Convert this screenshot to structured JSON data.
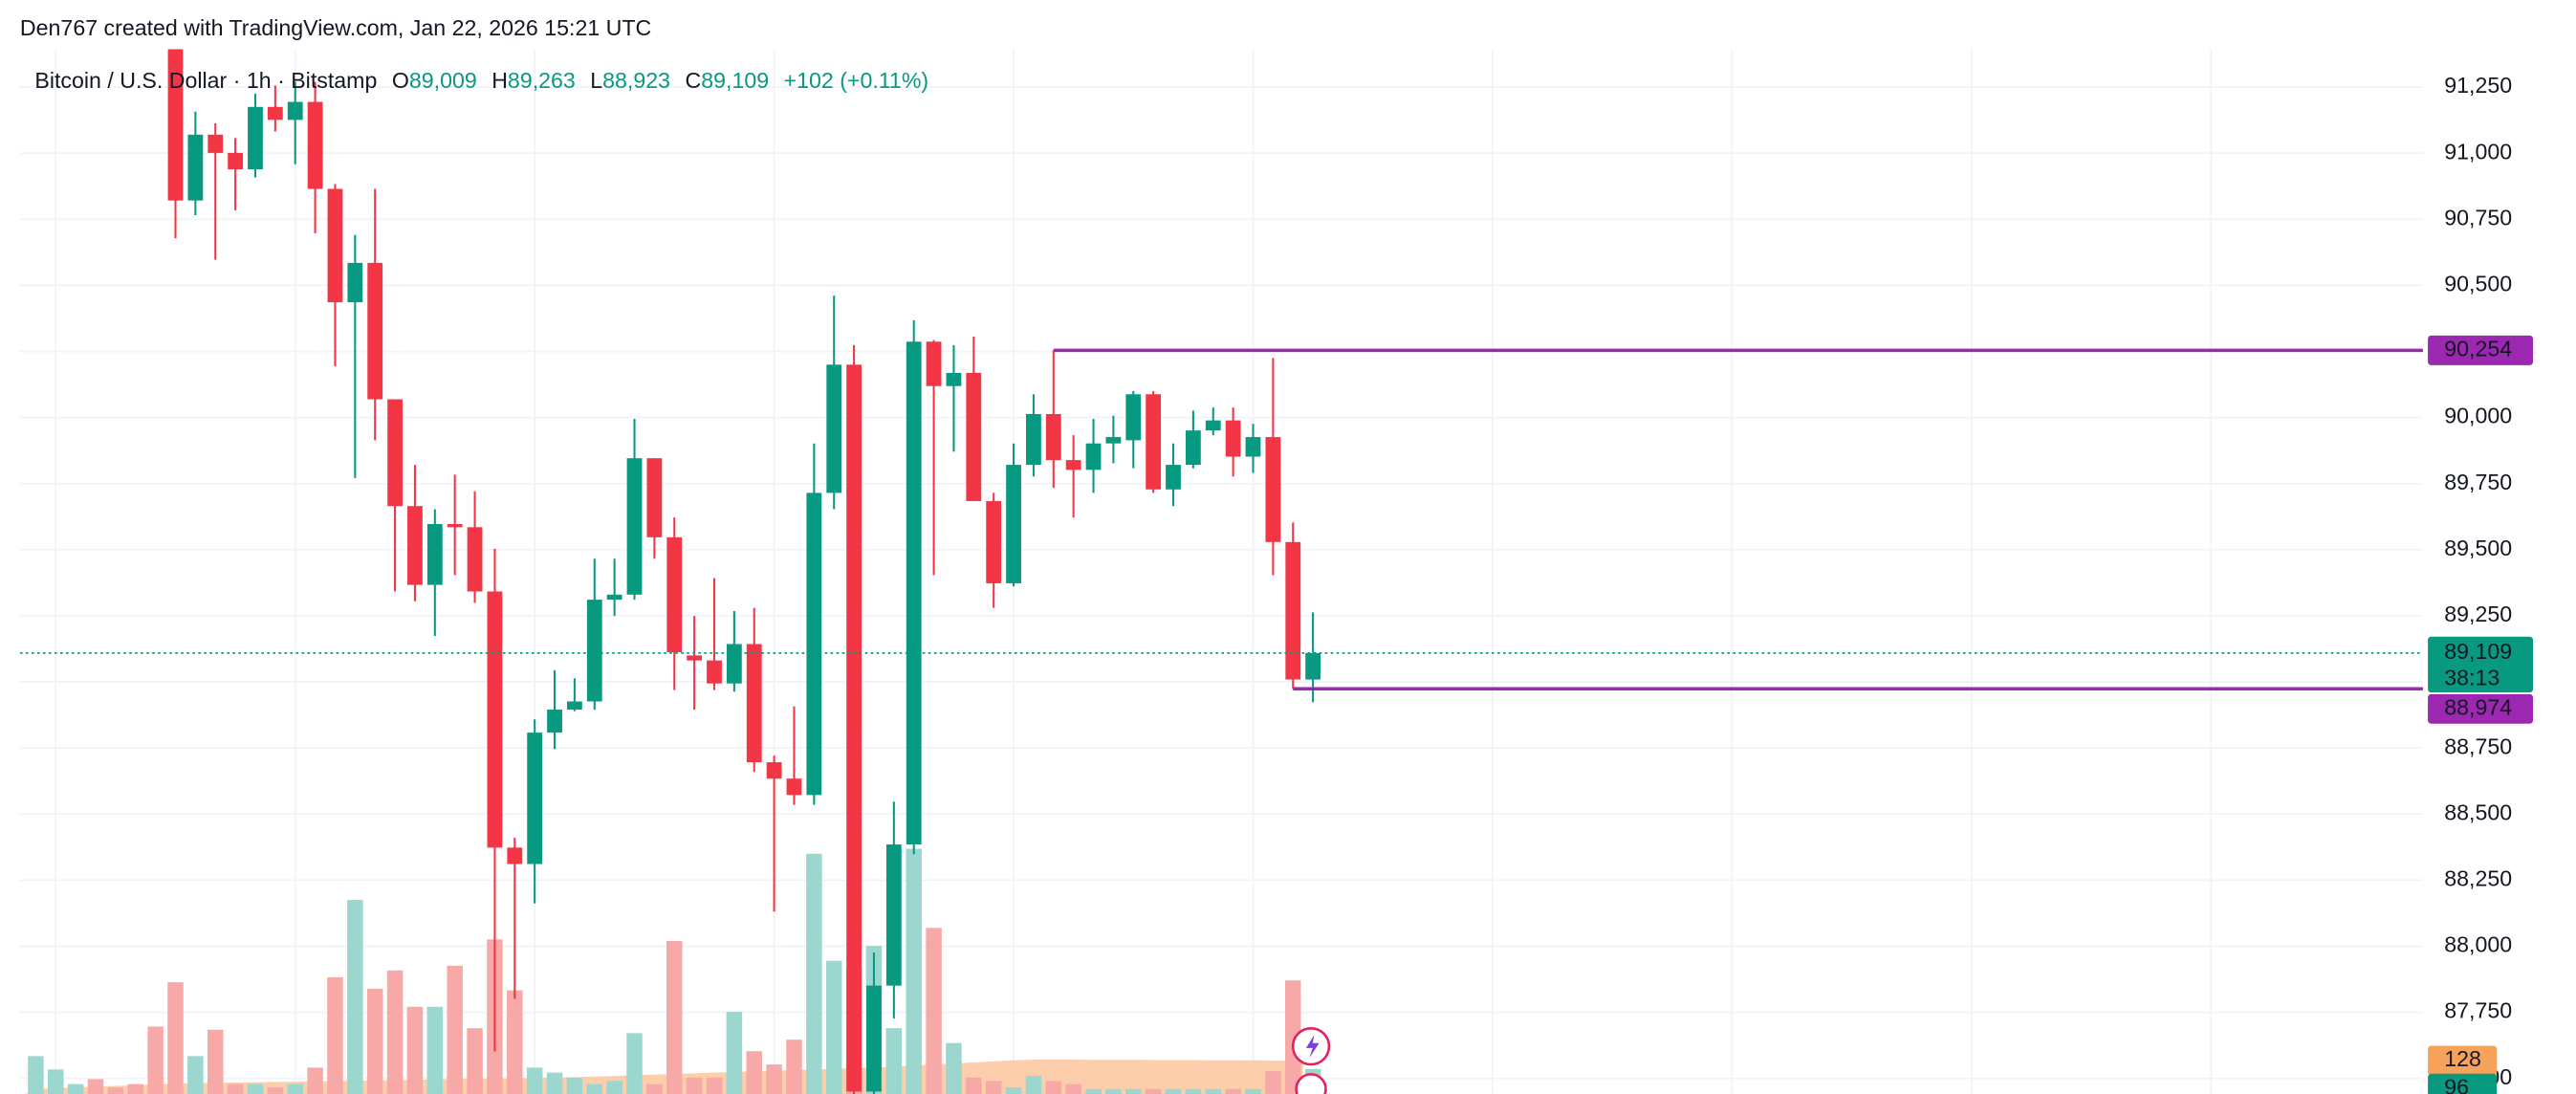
{
  "chart_data": {
    "type": "candlestick",
    "attribution": "Den767 created with TradingView.com, Jan 22, 2026 15:21 UTC",
    "legend": {
      "symbol": "Bitcoin / U.S. Dollar · 1h · Bitstamp",
      "o": "O",
      "open": "89,009",
      "h": "H",
      "high": "89,263",
      "l": "L",
      "low": "88,923",
      "c": "C",
      "close": "89,109",
      "change": "+102 (+0.11%)"
    },
    "up_color": "#089981",
    "down_color": "#f23645",
    "volume_up_color": "#9bd6cf",
    "volume_down_color": "#f7a9a8",
    "volume_ma_color": "#fcc69c",
    "volume_ma_label_color": "#f7a25a",
    "open": [
      null,
      null,
      null,
      null,
      null,
      null,
      null,
      91450,
      90821,
      91070,
      91001,
      90939,
      91175,
      91126,
      91194,
      90865,
      90436,
      90585,
      90069,
      89665,
      89367,
      89597,
      89585,
      89342,
      88373,
      88311,
      88808,
      88895,
      88926,
      89311,
      89330,
      89846,
      89547,
      89100,
      89081,
      88994,
      89143,
      88696,
      88634,
      88572,
      89715,
      90200,
      87450,
      87851,
      88385,
      90287,
      90119,
      90169,
      89684,
      89373,
      89821,
      90013,
      89839,
      89802,
      89902,
      89914,
      90088,
      89728,
      89821,
      89951,
      89989,
      89852,
      89926,
      89529,
      89009
    ],
    "high": [
      null,
      null,
      null,
      null,
      null,
      null,
      null,
      91500,
      91157,
      91113,
      91057,
      91225,
      91256,
      91269,
      91269,
      90883,
      90691,
      90865,
      90069,
      89821,
      89653,
      89784,
      89721,
      89504,
      88410,
      88858,
      89044,
      89013,
      89466,
      89466,
      89995,
      89846,
      89622,
      89249,
      89392,
      89268,
      89280,
      88721,
      88907,
      89902,
      90461,
      90274,
      87976,
      88547,
      90368,
      90293,
      90274,
      90306,
      89715,
      89902,
      90088,
      90254,
      89933,
      89995,
      90007,
      90100,
      90100,
      89902,
      90026,
      90038,
      90038,
      89976,
      90225,
      89603,
      89263
    ],
    "low": [
      null,
      null,
      null,
      null,
      null,
      null,
      null,
      90678,
      90765,
      90597,
      90784,
      90908,
      91082,
      90958,
      90697,
      90194,
      89771,
      89914,
      89342,
      89305,
      89174,
      89404,
      89299,
      87602,
      87801,
      88162,
      88746,
      88889,
      88895,
      89249,
      89311,
      89466,
      88969,
      88895,
      88969,
      88963,
      88659,
      88131,
      88535,
      88535,
      89653,
      87400,
      87350,
      87727,
      88348,
      89404,
      89871,
      89684,
      89280,
      89361,
      89777,
      89734,
      89622,
      89715,
      89827,
      89808,
      89715,
      89665,
      89808,
      89933,
      89777,
      89790,
      89404,
      88974,
      88923
    ],
    "close": [
      null,
      null,
      null,
      null,
      null,
      null,
      null,
      90821,
      91070,
      91001,
      90939,
      91175,
      91126,
      91194,
      90865,
      90436,
      90585,
      90069,
      89665,
      89367,
      89597,
      89585,
      89342,
      88373,
      88311,
      88808,
      88895,
      88926,
      89311,
      89330,
      89846,
      89547,
      89112,
      89081,
      88994,
      89143,
      88696,
      88634,
      88572,
      89715,
      90200,
      87450,
      87851,
      88385,
      90287,
      90119,
      90169,
      89684,
      89373,
      89821,
      90013,
      89839,
      89802,
      89902,
      89926,
      90088,
      89728,
      89821,
      89951,
      89989,
      89852,
      89926,
      89529,
      89009,
      89109
    ],
    "volume": [
      145,
      94,
      38,
      57,
      25,
      38,
      258,
      428,
      145,
      246,
      38,
      38,
      25,
      38,
      101,
      447,
      743,
      403,
      473,
      334,
      334,
      491,
      252,
      592,
      397,
      101,
      82,
      63,
      38,
      50,
      233,
      38,
      586,
      63,
      63,
      315,
      164,
      113,
      208,
      920,
      510,
      479,
      567,
      252,
      939,
      636,
      195,
      63,
      50,
      25,
      69,
      50,
      38,
      19,
      19,
      19,
      19,
      19,
      19,
      19,
      19,
      19,
      88,
      435,
      96
    ],
    "volume_side": [
      "up",
      "up",
      "up",
      "down",
      "down",
      "down",
      "down",
      "down",
      "up",
      "down",
      "down",
      "up",
      "down",
      "up",
      "down",
      "down",
      "up",
      "down",
      "down",
      "down",
      "up",
      "down",
      "down",
      "down",
      "down",
      "up",
      "up",
      "up",
      "up",
      "up",
      "up",
      "down",
      "down",
      "down",
      "down",
      "up",
      "down",
      "down",
      "down",
      "up",
      "up",
      "down",
      "up",
      "up",
      "up",
      "down",
      "up",
      "down",
      "down",
      "up",
      "up",
      "down",
      "down",
      "up",
      "up",
      "up",
      "down",
      "up",
      "up",
      "up",
      "down",
      "up",
      "down",
      "down",
      "up"
    ],
    "volume_ma": [
      19,
      22,
      25,
      28,
      31,
      34,
      37,
      40,
      41,
      42,
      44,
      45,
      46,
      47,
      48,
      50,
      51,
      52,
      53,
      54,
      56,
      57,
      58,
      59,
      60,
      62,
      63,
      64,
      67,
      69,
      72,
      74,
      77,
      79,
      82,
      84,
      87,
      89,
      92,
      94,
      96,
      99,
      101,
      105,
      109,
      113,
      117,
      121,
      125,
      129,
      132,
      132,
      132,
      131,
      131,
      131,
      130,
      130,
      130,
      129,
      129,
      129,
      128,
      128,
      128
    ],
    "ylim": [
      87441,
      91393
    ],
    "yticks": [
      {
        "value": 87500,
        "label": "87,500"
      },
      {
        "value": 87750,
        "label": "87,750"
      },
      {
        "value": 88000,
        "label": "88,000"
      },
      {
        "value": 88250,
        "label": "88,250"
      },
      {
        "value": 88500,
        "label": "88,500"
      },
      {
        "value": 88750,
        "label": "88,750"
      },
      {
        "value": 89000,
        "label": "89,000"
      },
      {
        "value": 89250,
        "label": "89,250"
      },
      {
        "value": 89500,
        "label": "89,500"
      },
      {
        "value": 89750,
        "label": "89,750"
      },
      {
        "value": 90000,
        "label": "90,000"
      },
      {
        "value": 90250,
        "label": "90,250"
      },
      {
        "value": 90500,
        "label": "90,500"
      },
      {
        "value": 90750,
        "label": "90,750"
      },
      {
        "value": 91000,
        "label": "91,000"
      },
      {
        "value": 91250,
        "label": "91,250"
      }
    ],
    "volume_ylim": [
      0,
      4000
    ],
    "grid": true,
    "last_price": {
      "value": 89109,
      "label": "89,109"
    },
    "countdown": "38:13",
    "levels": [
      {
        "value": 90254,
        "label": "90,254",
        "x": 51,
        "color": "#9c27b0"
      },
      {
        "value": 88974,
        "label": "88,974",
        "x": 63,
        "color": "#9c27b0"
      }
    ]
  }
}
